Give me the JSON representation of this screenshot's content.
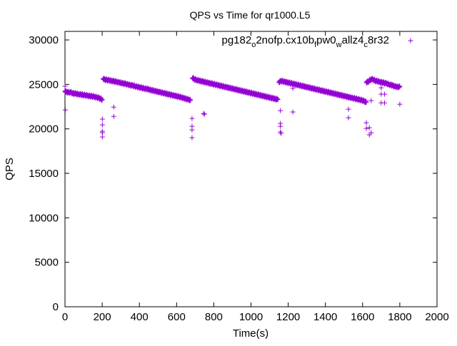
{
  "chart_data": {
    "type": "scatter",
    "title": "QPS vs Time for qr1000.L5",
    "xlabel": "Time(s)",
    "ylabel": "QPS",
    "xlim": [
      0,
      2000
    ],
    "ylim": [
      0,
      30000
    ],
    "xticks": [
      "0",
      "200",
      "400",
      "600",
      "800",
      "1000",
      "1200",
      "1400",
      "1600",
      "1800",
      "2000"
    ],
    "yticks": [
      "0",
      "5000",
      "10000",
      "15000",
      "20000",
      "25000",
      "30000"
    ],
    "grid": false,
    "legend_position": "top-right",
    "marker": "plus",
    "series": [
      {
        "name": "pg182_o2nofp.cx10b_fpw0_wallz4_c8r32",
        "name_parts": [
          "pg182",
          "o",
          "2nofp.cx10b",
          "f",
          "pw0",
          "w",
          "allz4",
          "c",
          "8r32"
        ],
        "color": "#9400d3",
        "segments": [
          {
            "x_start": 0,
            "x_step": 10,
            "values": [
              24200,
              24150,
              24100,
              24120,
              24000,
              23980,
              23950,
              23900,
              23880,
              23850,
              23800,
              23780,
              23750,
              23700,
              23680,
              23650,
              23600,
              23550,
              23500,
              23400,
              23300
            ]
          },
          {
            "x_start": 205,
            "x_step": 10,
            "values": [
              25600,
              25550,
              25500,
              25480,
              25420,
              25380,
              25350,
              25300,
              25250,
              25200,
              25150,
              25100,
              25080,
              25000,
              24950,
              24900,
              24880,
              24800,
              24750,
              24700,
              24650,
              24600,
              24550,
              24500,
              24480,
              24400,
              24350,
              24300,
              24250,
              24200,
              24150,
              24100,
              24050,
              24000,
              23950,
              23900,
              23850,
              23800,
              23750,
              23700,
              23650,
              23600,
              23550,
              23480,
              23420,
              23350,
              23300,
              23200
            ]
          },
          {
            "x_start": 685,
            "x_step": 10,
            "values": [
              25700,
              25600,
              25500,
              25450,
              25400,
              25350,
              25300,
              25250,
              25200,
              25150,
              25100,
              25050,
              25000,
              24950,
              24900,
              24850,
              24800,
              24750,
              24700,
              24650,
              24600,
              24550,
              24500,
              24450,
              24400,
              24350,
              24300,
              24250,
              24200,
              24150,
              24100,
              24050,
              24000,
              23950,
              23900,
              23850,
              23800,
              23750,
              23700,
              23650,
              23600,
              23550,
              23500,
              23450,
              23400,
              23350,
              23300
            ]
          },
          {
            "x_start": 1150,
            "x_step": 10,
            "values": [
              25200,
              25400,
              25350,
              25300,
              25250,
              25200,
              25150,
              25100,
              25050,
              25000,
              24950,
              24900,
              24850,
              24800,
              24750,
              24700,
              24650,
              24600,
              24550,
              24500,
              24450,
              24400,
              24350,
              24300,
              24250,
              24200,
              24150,
              24100,
              24050,
              24000,
              23950,
              23900,
              23850,
              23800,
              23750,
              23700,
              23650,
              23600,
              23550,
              23500,
              23450,
              23400,
              23350,
              23300,
              23250,
              23200,
              23100,
              23000
            ]
          },
          {
            "x_start": 1620,
            "x_step": 10,
            "values": [
              25200,
              25300,
              25500,
              25600,
              25500,
              25400,
              25350,
              25300,
              25250,
              25200,
              25150,
              25100,
              25000,
              24950,
              24900,
              24800,
              24750,
              24700,
              24800
            ]
          }
        ],
        "outliers": [
          [
            0,
            24800
          ],
          [
            2,
            22130
          ],
          [
            201,
            21100
          ],
          [
            201,
            20450
          ],
          [
            201,
            19730
          ],
          [
            201,
            19570
          ],
          [
            201,
            19090
          ],
          [
            262,
            22450
          ],
          [
            262,
            21400
          ],
          [
            683,
            21170
          ],
          [
            683,
            20290
          ],
          [
            683,
            19890
          ],
          [
            683,
            19010
          ],
          [
            745,
            21730
          ],
          [
            750,
            21650
          ],
          [
            1158,
            22050
          ],
          [
            1158,
            20610
          ],
          [
            1158,
            20290
          ],
          [
            1158,
            19650
          ],
          [
            1162,
            19490
          ],
          [
            1225,
            21900
          ],
          [
            1225,
            24570
          ],
          [
            1524,
            22210
          ],
          [
            1524,
            21250
          ],
          [
            1620,
            20690
          ],
          [
            1620,
            20050
          ],
          [
            1636,
            20130
          ],
          [
            1636,
            19330
          ],
          [
            1646,
            19570
          ],
          [
            1646,
            23180
          ],
          [
            1700,
            24620
          ],
          [
            1700,
            23900
          ],
          [
            1700,
            22930
          ],
          [
            1718,
            23900
          ],
          [
            1718,
            22930
          ],
          [
            1800,
            22770
          ]
        ]
      }
    ]
  }
}
